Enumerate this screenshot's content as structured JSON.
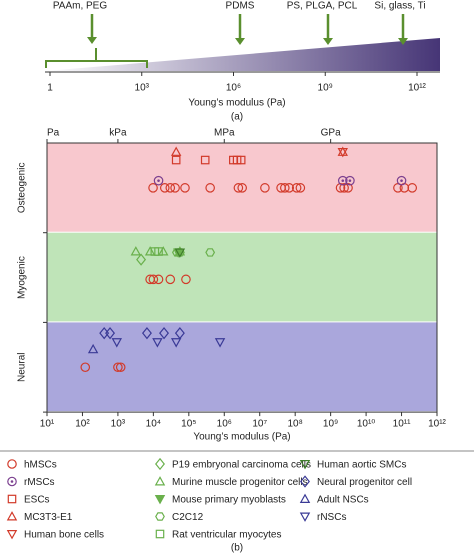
{
  "chart_data": [
    {
      "type": "scale",
      "xlim": [
        1,
        1000000000000
      ],
      "xticks": [
        1,
        {
          "value": 1000,
          "label": "10³"
        },
        {
          "value": 1000000,
          "label": "10⁶"
        },
        {
          "value": 1000000000,
          "label": "10⁹"
        },
        {
          "value": 1000000000000,
          "label": "10¹²"
        }
      ],
      "log_x": true,
      "xlabel": "Young’s modulus (Pa)",
      "annotations": [
        "PAAm, PEG",
        "PDMS",
        "PS, PLGA, PCL",
        "Si, glass, Ti"
      ],
      "colors": [
        "#ffffff",
        "#463576"
      ],
      "annotation_color": "#5a8f2e",
      "caption": "(a)"
    },
    {
      "type": "scatter",
      "xlim": [
        10,
        1000000000000
      ],
      "log_x": true,
      "xticks": [
        {
          "value": 10,
          "label": "10¹"
        },
        {
          "value": 100,
          "label": "10²"
        },
        {
          "value": 1000,
          "label": "10³"
        },
        {
          "value": 10000,
          "label": "10⁴"
        },
        {
          "value": 100000,
          "label": "10⁵"
        },
        {
          "value": 1000000,
          "label": "10⁶"
        },
        {
          "value": 10000000,
          "label": "10⁷"
        },
        {
          "value": 100000000,
          "label": "10⁸"
        },
        {
          "value": 1000000000,
          "label": "10⁹"
        },
        {
          "value": 10000000000,
          "label": "10¹⁰"
        },
        {
          "value": 100000000000,
          "label": "10¹¹"
        },
        {
          "value": 1000000000000,
          "label": "10¹²"
        }
      ],
      "x2ticks": [
        {
          "value": 10,
          "label": "Pa"
        },
        {
          "value": 1000,
          "label": "kPa"
        },
        {
          "value": 1000000,
          "label": "MPa"
        },
        {
          "value": 1000000000,
          "label": "GPa"
        }
      ],
      "xlabel": "Young’s modulus (Pa)",
      "bands": [
        "Osteogenic",
        "Myogenic",
        "Neural"
      ],
      "band_colors": [
        "#f8c8ce",
        "#bfe4b8",
        "#aaa7dc"
      ],
      "caption": "(b)",
      "series": [
        {
          "name": "hMSCs",
          "color": "#d23a2a",
          "marker": "circle",
          "values": [
            9800,
            21000,
            30000,
            41000,
            78000,
            400000,
            2500000,
            3200000,
            14000000,
            40000000,
            51000000,
            68000000,
            110000000,
            140000000,
            1900000000,
            2400000000,
            3100000000,
            79000000000,
            120000000000,
            200000000000,
            8100,
            10000,
            14000,
            30000,
            83000,
            120,
            1000,
            1200
          ],
          "bands": [
            "Osteogenic",
            "Osteogenic",
            "Osteogenic",
            "Osteogenic",
            "Osteogenic",
            "Osteogenic",
            "Osteogenic",
            "Osteogenic",
            "Osteogenic",
            "Osteogenic",
            "Osteogenic",
            "Osteogenic",
            "Osteogenic",
            "Osteogenic",
            "Osteogenic",
            "Osteogenic",
            "Osteogenic",
            "Osteogenic",
            "Osteogenic",
            "Osteogenic",
            "Myogenic",
            "Myogenic",
            "Myogenic",
            "Myogenic",
            "Myogenic",
            "Neural",
            "Neural",
            "Neural"
          ]
        },
        {
          "name": "rMSCs",
          "color": "#7b3f8f",
          "marker": "circle-dot",
          "values": [
            14000,
            2200000000,
            3500000000,
            100000000000
          ],
          "bands": [
            "Osteogenic",
            "Osteogenic",
            "Osteogenic",
            "Osteogenic"
          ]
        },
        {
          "name": "ESCs",
          "color": "#d23a2a",
          "marker": "square",
          "values": [
            44000,
            290000,
            1800000,
            2300000,
            3000000
          ],
          "bands": [
            "Osteogenic",
            "Osteogenic",
            "Osteogenic",
            "Osteogenic",
            "Osteogenic"
          ]
        },
        {
          "name": "MC3T3-E1",
          "color": "#d23a2a",
          "marker": "triangle-up",
          "values": [
            44000,
            2200000000
          ],
          "bands": [
            "Osteogenic",
            "Osteogenic"
          ]
        },
        {
          "name": "Human bone cells",
          "color": "#d23a2a",
          "marker": "triangle-down",
          "values": [
            2200000000
          ],
          "bands": [
            "Osteogenic"
          ]
        },
        {
          "name": "P19 embryonal carcinoma cells",
          "color": "#6ab04c",
          "marker": "diamond",
          "values": [
            4500
          ],
          "bands": [
            "Myogenic"
          ]
        },
        {
          "name": "Murine muscle progenitor cells",
          "color": "#6ab04c",
          "marker": "triangle-up",
          "values": [
            3200,
            8100,
            19000,
            56000
          ],
          "bands": [
            "Myogenic",
            "Myogenic",
            "Myogenic",
            "Myogenic"
          ]
        },
        {
          "name": "Mouse primary myoblasts",
          "color": "#6ab04c",
          "marker": "triangle-down-filled",
          "values": [
            50000
          ],
          "bands": [
            "Myogenic"
          ]
        },
        {
          "name": "C2C12",
          "color": "#6ab04c",
          "marker": "hexagon",
          "values": [
            46000,
            400000,
            56000
          ],
          "bands": [
            "Myogenic",
            "Myogenic",
            "Myogenic"
          ]
        },
        {
          "name": "Rat ventricular myocytes",
          "color": "#6ab04c",
          "marker": "square",
          "values": [
            11000,
            14000
          ],
          "bands": [
            "Myogenic",
            "Myogenic"
          ]
        },
        {
          "name": "Human aortic SMCs",
          "color": "#3e7d2a",
          "marker": "triangle-down",
          "values": [
            56000
          ],
          "bands": [
            "Myogenic"
          ]
        },
        {
          "name": "Neural progenitor cell",
          "color": "#3a3a96",
          "marker": "diamond",
          "values": [
            600,
            6600,
            56000,
            410,
            20000
          ],
          "bands": [
            "Neural",
            "Neural",
            "Neural",
            "Neural",
            "Neural"
          ]
        },
        {
          "name": "Adult NSCs",
          "color": "#3a3a96",
          "marker": "triangle-up",
          "values": [
            200
          ],
          "bands": [
            "Neural"
          ]
        },
        {
          "name": "rNSCs",
          "color": "#3a3a96",
          "marker": "triangle-down",
          "values": [
            930,
            13000,
            44000,
            760000
          ],
          "bands": [
            "Neural",
            "Neural",
            "Neural",
            "Neural"
          ]
        }
      ]
    }
  ]
}
